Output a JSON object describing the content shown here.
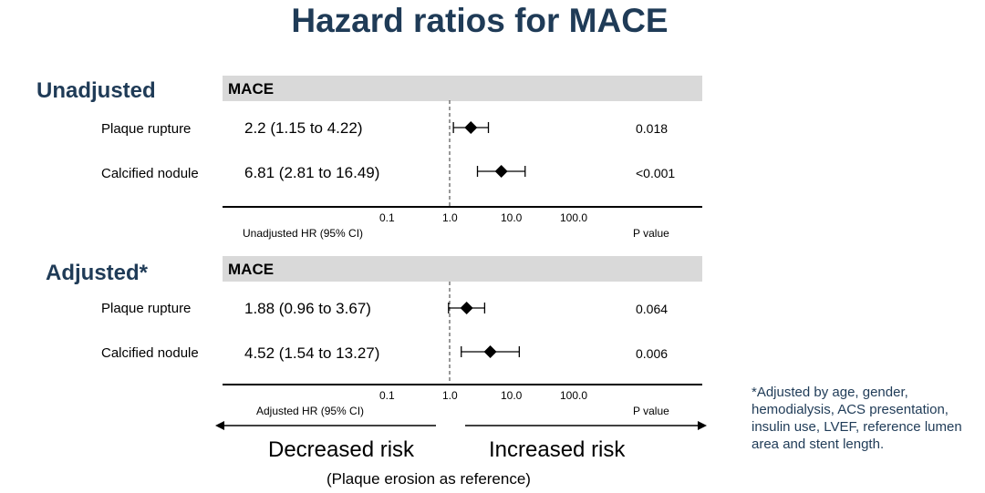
{
  "title": "Hazard ratios for MACE",
  "footnote": "*Adjusted by age, gender, hemodialysis, ACS presentation, insulin use, LVEF, reference lumen area and stent length.",
  "decreased_label": "Decreased risk",
  "increased_label": "Increased risk",
  "reference_note": "(Plaque erosion as reference)",
  "chart_data": [
    {
      "type": "forest",
      "section": "Unadjusted",
      "outcome": "MACE",
      "xlabel": "Unadjusted HR (95% CI)",
      "pvalue_header": "P value",
      "x_scale": "log",
      "xlim": [
        0.01,
        1000
      ],
      "ticks": [
        "0.1",
        "1.0",
        "10.0",
        "100.0"
      ],
      "reference_line": 1.0,
      "rows": [
        {
          "label": "Plaque rupture",
          "hr": 2.2,
          "lo": 1.15,
          "hi": 4.22,
          "hr_text": "2.2 (1.15 to 4.22)",
          "p": "0.018"
        },
        {
          "label": "Calcified nodule",
          "hr": 6.81,
          "lo": 2.81,
          "hi": 16.49,
          "hr_text": "6.81 (2.81 to 16.49)",
          "p": "<0.001"
        }
      ]
    },
    {
      "type": "forest",
      "section": "Adjusted*",
      "outcome": "MACE",
      "xlabel": "Adjusted HR (95% CI)",
      "pvalue_header": "P value",
      "x_scale": "log",
      "xlim": [
        0.01,
        1000
      ],
      "ticks": [
        "0.1",
        "1.0",
        "10.0",
        "100.0"
      ],
      "reference_line": 1.0,
      "rows": [
        {
          "label": "Plaque rupture",
          "hr": 1.88,
          "lo": 0.96,
          "hi": 3.67,
          "hr_text": "1.88 (0.96 to 3.67)",
          "p": "0.064"
        },
        {
          "label": "Calcified nodule",
          "hr": 4.52,
          "lo": 1.54,
          "hi": 13.27,
          "hr_text": "4.52 (1.54 to 13.27)",
          "p": "0.006"
        }
      ]
    }
  ]
}
